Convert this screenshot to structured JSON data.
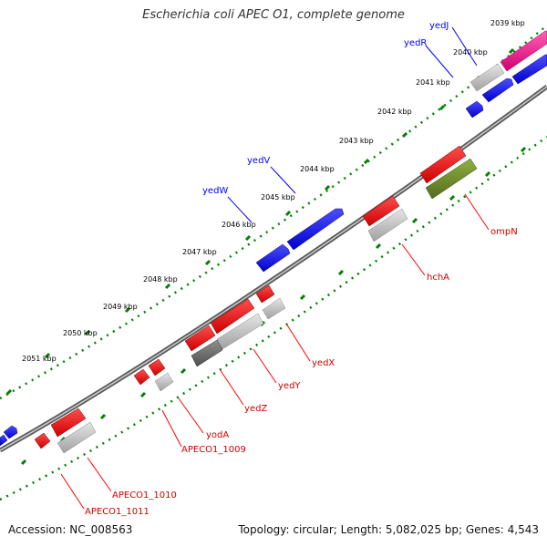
{
  "title": "Escherichia coli APEC O1, complete genome",
  "footer": {
    "accession": "Accession: NC_008563",
    "topology": "Topology: circular; Length: 5,082,025 bp; Genes: 4,543"
  },
  "colors": {
    "forward_gene": "#0000ff",
    "reverse_gene": "#ff0000",
    "gray_feature": "#c0c0c0",
    "dark_feature": "#707070",
    "pink_feature": "#ff1493",
    "olive_feature": "#6b8e23",
    "backbone": "#808080",
    "tick": "#008000"
  },
  "ticks": [
    "2039 kbp",
    "2040 kbp",
    "2041 kbp",
    "2042 kbp",
    "2043 kbp",
    "2044 kbp",
    "2045 kbp",
    "2046 kbp",
    "2047 kbp",
    "2048 kbp",
    "2049 kbp",
    "2050 kbp",
    "2051 kbp"
  ],
  "forward_labels": [
    "yedJ",
    "yedR",
    "yedV",
    "yedW"
  ],
  "reverse_labels": [
    "ompN",
    "hchA",
    "yedX",
    "yedY",
    "yedZ",
    "yodA",
    "APECO1_1009",
    "APECO1_1010",
    "APECO1_1011"
  ]
}
